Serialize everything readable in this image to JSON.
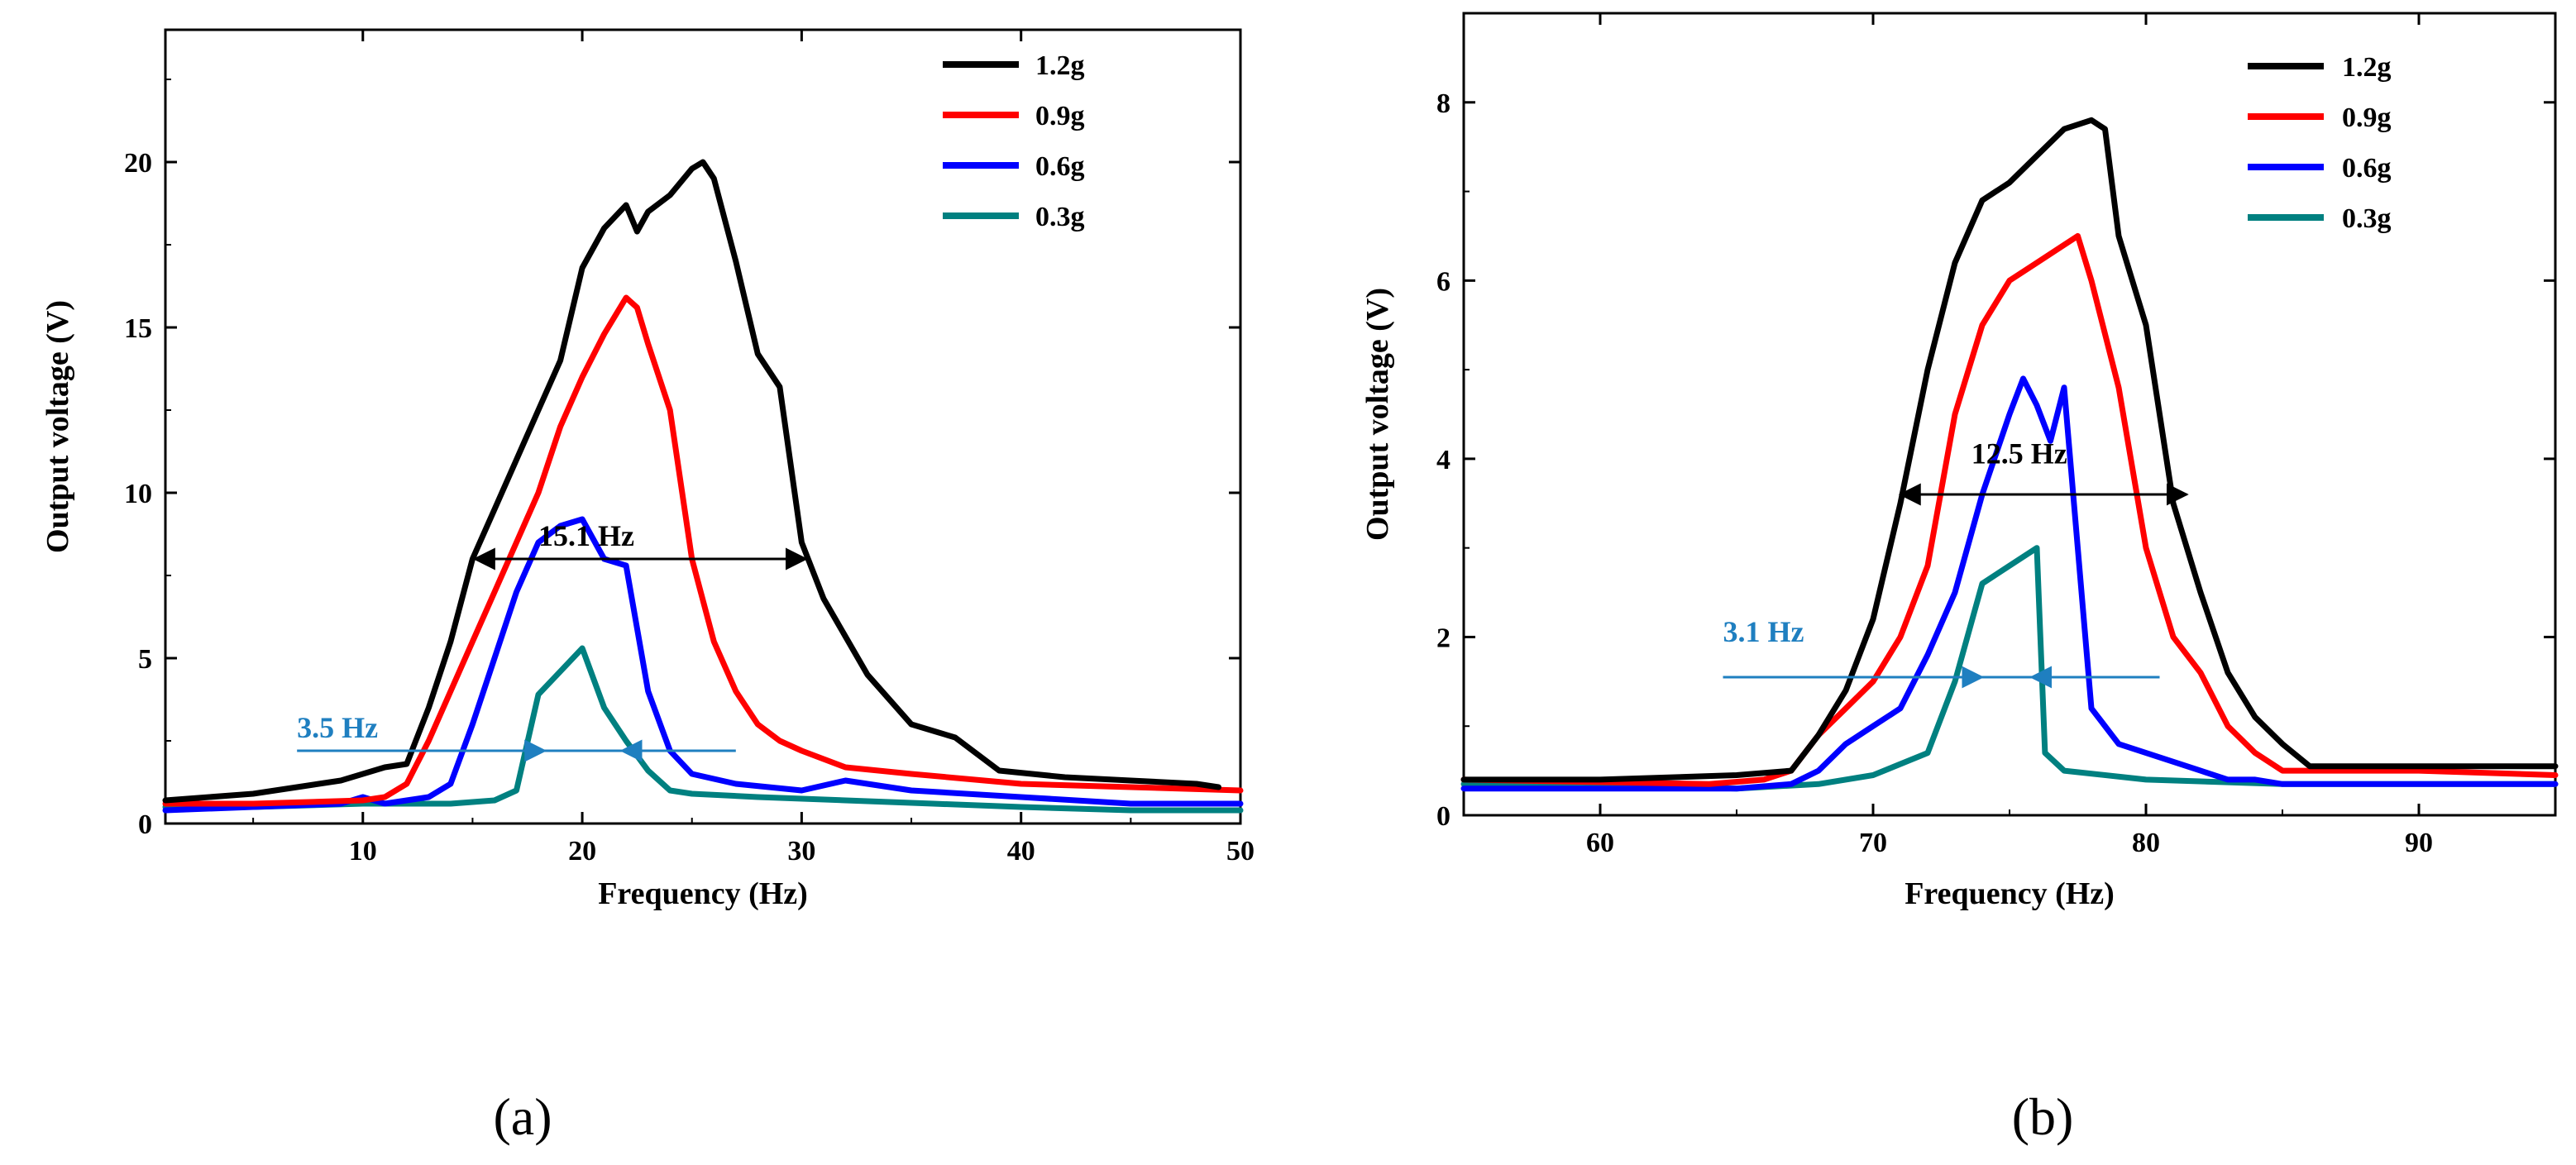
{
  "chart_data": [
    {
      "type": "line",
      "panel_label": "(a)",
      "xlabel": "Frequency (Hz)",
      "ylabel": "Output voltage (V)",
      "xlim": [
        1,
        50
      ],
      "ylim": [
        0,
        24
      ],
      "xticks": [
        10,
        20,
        30,
        40,
        50
      ],
      "yticks": [
        0,
        5,
        10,
        15,
        20
      ],
      "legend_position": "top-right",
      "series": [
        {
          "name": "1.2g",
          "color": "#000000",
          "x": [
            1,
            3,
            5,
            7,
            9,
            10,
            11,
            12,
            13,
            14,
            15,
            16,
            17,
            18,
            19,
            20,
            21,
            22,
            22.5,
            23,
            24,
            25,
            25.5,
            26,
            27,
            28,
            29,
            30,
            31,
            33,
            35,
            37,
            39,
            42,
            45,
            48,
            49
          ],
          "y": [
            0.7,
            0.8,
            0.9,
            1.1,
            1.3,
            1.5,
            1.7,
            1.8,
            3.5,
            5.5,
            8,
            9.5,
            11,
            12.5,
            14,
            16.8,
            18,
            18.7,
            17.9,
            18.5,
            19,
            19.8,
            20,
            19.5,
            17,
            14.2,
            13.2,
            8.5,
            6.8,
            4.5,
            3,
            2.6,
            1.6,
            1.4,
            1.3,
            1.2,
            1.1
          ]
        },
        {
          "name": "0.9g",
          "color": "#ff0000",
          "x": [
            1,
            5,
            10,
            11,
            12,
            13,
            14,
            15,
            16,
            17,
            18,
            19,
            20,
            21,
            22,
            22.5,
            23,
            24,
            25,
            26,
            27,
            28,
            29,
            30,
            32,
            35,
            40,
            45,
            50
          ],
          "y": [
            0.6,
            0.6,
            0.7,
            0.8,
            1.2,
            2.5,
            4,
            5.5,
            7,
            8.5,
            10,
            12,
            13.5,
            14.8,
            15.9,
            15.6,
            14.5,
            12.5,
            8,
            5.5,
            4,
            3,
            2.5,
            2.2,
            1.7,
            1.5,
            1.2,
            1.1,
            1.0
          ]
        },
        {
          "name": "0.6g",
          "color": "#0000ff",
          "x": [
            1,
            5,
            9,
            10,
            11,
            12,
            13,
            14,
            15,
            16,
            17,
            18,
            19,
            20,
            21,
            22,
            23,
            24,
            25,
            27,
            30,
            32,
            35,
            40,
            45,
            50
          ],
          "y": [
            0.4,
            0.5,
            0.6,
            0.8,
            0.6,
            0.7,
            0.8,
            1.2,
            3,
            5,
            7,
            8.5,
            9,
            9.2,
            8,
            7.8,
            4,
            2.2,
            1.5,
            1.2,
            1.0,
            1.3,
            1.0,
            0.8,
            0.6,
            0.6
          ]
        },
        {
          "name": "0.3g",
          "color": "#008080",
          "x": [
            1,
            5,
            10,
            14,
            16,
            17,
            18,
            19,
            20,
            21,
            22,
            23,
            24,
            25,
            28,
            32,
            36,
            40,
            45,
            48,
            50
          ],
          "y": [
            0.5,
            0.5,
            0.6,
            0.6,
            0.7,
            1.0,
            3.9,
            4.6,
            5.3,
            3.5,
            2.5,
            1.6,
            1.0,
            0.9,
            0.8,
            0.7,
            0.6,
            0.5,
            0.4,
            0.4,
            0.4
          ]
        }
      ],
      "annotations": [
        {
          "text": "15.1 Hz",
          "color": "#000000",
          "x1": 15.1,
          "x2": 30.2,
          "y": 8.0,
          "label_x": 18,
          "label_y": 8.4
        },
        {
          "text": "3.5 Hz",
          "color": "#1f7fc0",
          "x1": 7,
          "x2": 27,
          "y": 2.2,
          "arrow_tips": [
            18.3,
            21.8
          ],
          "label_x": 7,
          "label_y": 2.6
        }
      ]
    },
    {
      "type": "line",
      "panel_label": "(b)",
      "xlabel": "Frequency (Hz)",
      "ylabel": "Output voltage (V)",
      "xlim": [
        55,
        95
      ],
      "ylim": [
        0,
        9
      ],
      "xticks": [
        60,
        70,
        80,
        90
      ],
      "yticks": [
        0,
        2,
        4,
        6,
        8
      ],
      "legend_position": "top-right",
      "series": [
        {
          "name": "1.2g",
          "color": "#000000",
          "x": [
            55,
            60,
            65,
            67,
            68,
            69,
            70,
            71,
            72,
            73,
            74,
            75,
            76,
            77,
            78,
            78.5,
            79,
            80,
            81,
            82,
            83,
            84,
            85,
            86,
            90,
            95
          ],
          "y": [
            0.4,
            0.4,
            0.45,
            0.5,
            0.9,
            1.4,
            2.2,
            3.5,
            5,
            6.2,
            6.9,
            7.1,
            7.4,
            7.7,
            7.8,
            7.7,
            6.5,
            5.5,
            3.5,
            2.5,
            1.6,
            1.1,
            0.8,
            0.55,
            0.55,
            0.55
          ]
        },
        {
          "name": "0.9g",
          "color": "#ff0000",
          "x": [
            55,
            64,
            66,
            67,
            68,
            69,
            70,
            71,
            72,
            73,
            74,
            75,
            76,
            77,
            77.5,
            78,
            79,
            80,
            81,
            82,
            83,
            84,
            85,
            90,
            95
          ],
          "y": [
            0.4,
            0.35,
            0.4,
            0.5,
            0.9,
            1.2,
            1.5,
            2,
            2.8,
            4.5,
            5.5,
            6,
            6.2,
            6.4,
            6.5,
            6,
            4.8,
            3,
            2,
            1.6,
            1.0,
            0.7,
            0.5,
            0.5,
            0.45
          ]
        },
        {
          "name": "0.6g",
          "color": "#0000ff",
          "x": [
            55,
            60,
            65,
            67,
            68,
            69,
            70,
            71,
            72,
            73,
            74,
            75,
            75.5,
            76,
            76.5,
            77,
            77.5,
            78,
            79,
            80,
            81,
            82,
            83,
            84,
            85,
            90,
            95
          ],
          "y": [
            0.3,
            0.3,
            0.3,
            0.35,
            0.5,
            0.8,
            1.0,
            1.2,
            1.8,
            2.5,
            3.6,
            4.5,
            4.9,
            4.6,
            4.2,
            4.8,
            3,
            1.2,
            0.8,
            0.7,
            0.6,
            0.5,
            0.4,
            0.4,
            0.35,
            0.35,
            0.35
          ]
        },
        {
          "name": "0.3g",
          "color": "#008080",
          "x": [
            55,
            60,
            65,
            68,
            70,
            72,
            73,
            74,
            75,
            75.5,
            76,
            76.3,
            77,
            80,
            85,
            90,
            95
          ],
          "y": [
            0.35,
            0.35,
            0.3,
            0.35,
            0.45,
            0.7,
            1.5,
            2.6,
            2.8,
            2.9,
            3.0,
            0.7,
            0.5,
            0.4,
            0.35,
            0.35,
            0.35
          ]
        }
      ],
      "annotations": [
        {
          "text": "12.5 Hz",
          "color": "#000000",
          "x1": 71,
          "x2": 81.5,
          "y": 3.6,
          "label_x": 73.6,
          "label_y": 3.95
        },
        {
          "text": "3.1 Hz",
          "color": "#1f7fc0",
          "x1": 64.5,
          "x2": 80.5,
          "y": 1.55,
          "arrow_tips": [
            74,
            75.8
          ],
          "label_x": 64.5,
          "label_y": 1.95
        }
      ]
    }
  ]
}
